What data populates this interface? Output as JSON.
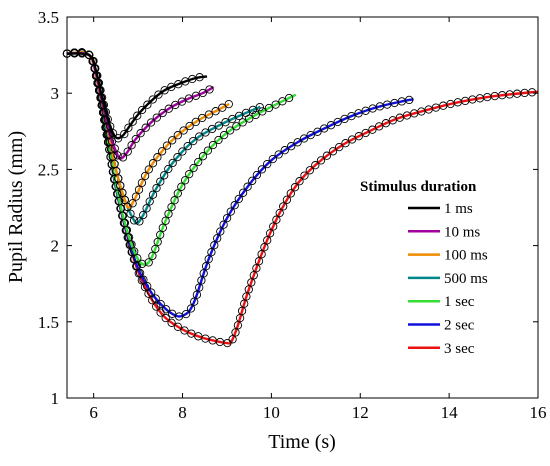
{
  "chart_data": {
    "type": "line",
    "title": "",
    "xlabel": "Time (s)",
    "ylabel": "Pupil Radius (mm)",
    "xlim": [
      5.4,
      16
    ],
    "ylim": [
      1,
      3.5
    ],
    "xticks": [
      6,
      8,
      10,
      12,
      14,
      16
    ],
    "yticks": [
      1,
      1.5,
      2,
      2.5,
      3,
      3.5
    ],
    "xtick_labels": [
      "6",
      "8",
      "10",
      "12",
      "14",
      "16"
    ],
    "ytick_labels": [
      "1",
      "1.5",
      "2",
      "2.5",
      "3",
      "3.5"
    ],
    "grid": false,
    "legend": {
      "title": "Stimulus duration",
      "position": "right"
    },
    "markers": "open circles (measured data) overlaid with solid model fit lines",
    "series": [
      {
        "name": "1 ms",
        "color": "#000000",
        "x": [
          5.4,
          5.9,
          6.05,
          6.2,
          6.35,
          6.5,
          6.65,
          6.8,
          7.0,
          7.3,
          7.6,
          8.0,
          8.3,
          8.55
        ],
        "y": [
          3.26,
          3.25,
          3.15,
          2.96,
          2.8,
          2.71,
          2.72,
          2.78,
          2.86,
          2.95,
          3.02,
          3.07,
          3.1,
          3.11
        ]
      },
      {
        "name": "10 ms",
        "color": "#a0009c",
        "x": [
          5.4,
          5.9,
          6.05,
          6.2,
          6.35,
          6.5,
          6.6,
          6.75,
          6.95,
          7.3,
          7.7,
          8.1,
          8.45,
          8.7
        ],
        "y": [
          3.26,
          3.25,
          3.13,
          2.93,
          2.74,
          2.62,
          2.57,
          2.61,
          2.7,
          2.81,
          2.9,
          2.96,
          3.0,
          3.04
        ]
      },
      {
        "name": "100 ms",
        "color": "#f08c00",
        "x": [
          5.4,
          5.9,
          6.1,
          6.3,
          6.5,
          6.7,
          6.8,
          6.95,
          7.2,
          7.6,
          8.0,
          8.4,
          8.8,
          9.05
        ],
        "y": [
          3.26,
          3.25,
          3.05,
          2.78,
          2.5,
          2.3,
          2.25,
          2.32,
          2.48,
          2.64,
          2.75,
          2.83,
          2.89,
          2.93
        ]
      },
      {
        "name": "500 ms",
        "color": "#00878a",
        "x": [
          5.4,
          5.9,
          6.1,
          6.3,
          6.5,
          6.7,
          6.9,
          7.0,
          7.15,
          7.4,
          7.8,
          8.3,
          8.9,
          9.5,
          9.75
        ],
        "y": [
          3.26,
          3.25,
          3.05,
          2.75,
          2.5,
          2.3,
          2.17,
          2.15,
          2.22,
          2.37,
          2.55,
          2.7,
          2.8,
          2.88,
          2.91
        ]
      },
      {
        "name": "1 sec",
        "color": "#33dd33",
        "x": [
          5.4,
          5.9,
          6.1,
          6.3,
          6.5,
          6.7,
          6.9,
          7.05,
          7.2,
          7.35,
          7.6,
          8.0,
          8.5,
          9.0,
          9.6,
          10.2,
          10.55
        ],
        "y": [
          3.26,
          3.25,
          3.05,
          2.72,
          2.4,
          2.15,
          1.97,
          1.89,
          1.88,
          1.95,
          2.15,
          2.4,
          2.6,
          2.74,
          2.85,
          2.94,
          2.99
        ]
      },
      {
        "name": "2 sec",
        "color": "#1010dd",
        "x": [
          5.4,
          5.9,
          6.1,
          6.3,
          6.5,
          6.75,
          7.0,
          7.3,
          7.6,
          7.85,
          8.0,
          8.15,
          8.3,
          8.6,
          9.0,
          9.5,
          10.0,
          10.6,
          11.2,
          11.8,
          12.4,
          13.0,
          13.2
        ],
        "y": [
          3.26,
          3.25,
          3.05,
          2.72,
          2.38,
          2.08,
          1.85,
          1.69,
          1.59,
          1.54,
          1.54,
          1.57,
          1.66,
          1.92,
          2.18,
          2.4,
          2.56,
          2.68,
          2.77,
          2.85,
          2.91,
          2.95,
          2.96
        ]
      },
      {
        "name": "3 sec",
        "color": "#ee1111",
        "x": [
          5.4,
          5.9,
          6.1,
          6.3,
          6.5,
          6.75,
          7.0,
          7.3,
          7.6,
          8.0,
          8.4,
          8.8,
          9.0,
          9.1,
          9.25,
          9.5,
          10.0,
          10.5,
          11.0,
          11.6,
          12.2,
          12.8,
          13.5,
          14.2,
          15.0,
          16.0
        ],
        "y": [
          3.26,
          3.25,
          3.05,
          2.72,
          2.38,
          2.07,
          1.83,
          1.65,
          1.53,
          1.45,
          1.4,
          1.37,
          1.36,
          1.37,
          1.48,
          1.72,
          2.1,
          2.37,
          2.53,
          2.66,
          2.75,
          2.83,
          2.89,
          2.94,
          2.98,
          3.01
        ]
      }
    ]
  }
}
